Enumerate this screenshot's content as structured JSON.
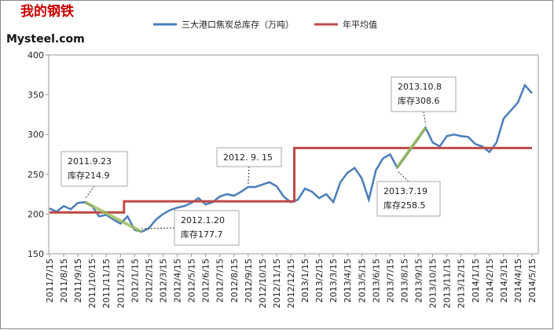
{
  "logo": {
    "mark": "我的钢铁",
    "site": "Mysteel.com"
  },
  "chart_data": {
    "type": "line",
    "categories": [
      "2011/7/15",
      null,
      "2011/8/15",
      null,
      "2011/9/15",
      null,
      "2011/10/15",
      null,
      "2011/11/15",
      null,
      "2011/12/15",
      null,
      "2012/1/15",
      null,
      "2012/2/15",
      null,
      "2012/3/15",
      null,
      "2012/4/15",
      null,
      "2012/5/15",
      null,
      "2012/6/15",
      null,
      "2012/7/15",
      null,
      "2012/8/15",
      null,
      "2012/9/15",
      null,
      "2012/10/15",
      null,
      "2012/11/15",
      null,
      "2012/12/15",
      null,
      "2013/1/15",
      null,
      "2013/2/15",
      null,
      "2013/3/15",
      null,
      "2013/4/15",
      null,
      "2013/5/15",
      null,
      "2013/6/15",
      null,
      "2013/7/15",
      null,
      "2013/8/15",
      null,
      "2013/9/15",
      null,
      "2013/10/15",
      null,
      "2013/11/15",
      null,
      "2013/12/15",
      null,
      "2014/1/15",
      null,
      "2014/2/15",
      null,
      "2014/3/15",
      null,
      "2014/4/15",
      null,
      "2014/5/15"
    ],
    "series": [
      {
        "name": "三大港口焦炭总库存（万吨）",
        "color": "#4a7ebb",
        "values": [
          207,
          203,
          210,
          206,
          214,
          214.9,
          210,
          197,
          199,
          193,
          188,
          197,
          180,
          177.7,
          182,
          193,
          200,
          205,
          208,
          210,
          214,
          220,
          212,
          215,
          222,
          225,
          223,
          228,
          234,
          234,
          237,
          240,
          235,
          222,
          215,
          218,
          232,
          228,
          220,
          225,
          215,
          240,
          252,
          258,
          245,
          218,
          255,
          270,
          275,
          258.5,
          270,
          283,
          295,
          308.6,
          290,
          285,
          298,
          300,
          298,
          297,
          288,
          285,
          278,
          290,
          320,
          330,
          340,
          362,
          352
        ]
      },
      {
        "name": "年平均值",
        "color": "#be4b48",
        "step": true,
        "values": [
          202,
          202,
          202,
          202,
          202,
          202,
          202,
          202,
          202,
          202,
          202,
          216,
          216,
          216,
          216,
          216,
          216,
          216,
          216,
          216,
          216,
          216,
          216,
          216,
          216,
          216,
          216,
          216,
          216,
          216,
          216,
          216,
          216,
          216,
          216,
          283,
          283,
          283,
          283,
          283,
          283,
          283,
          283,
          283,
          283,
          283,
          283,
          283,
          283,
          283,
          283,
          283,
          283,
          283,
          283,
          283,
          283,
          283,
          283,
          283,
          283,
          283,
          283,
          283,
          283,
          283,
          283,
          283,
          283
        ]
      }
    ],
    "ylim": [
      150,
      400
    ],
    "yticks": [
      150,
      200,
      250,
      300,
      350,
      400
    ],
    "grid": false,
    "annotations": [
      {
        "lines": [
          "2011.9.23",
          "库存214.9"
        ],
        "index": 5
      },
      {
        "lines": [
          "2012.1.20",
          "库存177.7"
        ],
        "index": 13
      },
      {
        "lines": [
          "2012. 9. 15"
        ],
        "index": 28
      },
      {
        "lines": [
          "2013.7.19",
          "库存258.5"
        ],
        "index": 49
      },
      {
        "lines": [
          "2013.10.8",
          "库存308.6"
        ],
        "index": 53
      }
    ]
  }
}
